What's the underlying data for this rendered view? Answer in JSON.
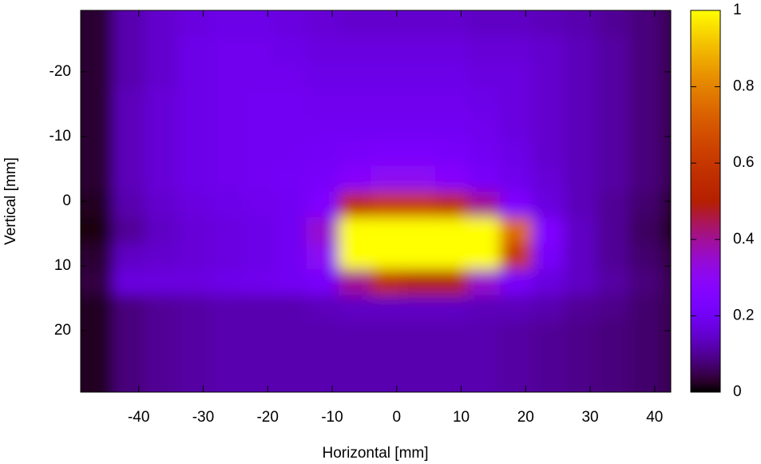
{
  "chart_data": {
    "type": "heatmap",
    "x_label": "Horizontal [mm]",
    "y_label": "Vertical [mm]",
    "colormap": "gnuplot",
    "xlim": [
      -49,
      42.5
    ],
    "ylim": [
      -29.5,
      29.5
    ],
    "y_reversed": true,
    "zlim": [
      0,
      1
    ],
    "xticks": [
      -40,
      -30,
      -20,
      -10,
      0,
      10,
      20,
      30,
      40
    ],
    "yticks": [
      -20,
      -10,
      0,
      10,
      20
    ],
    "zticks": [
      0,
      0.2,
      0.4,
      0.6,
      0.8,
      1
    ],
    "xbins": [
      -49,
      -44,
      -39,
      -34,
      -29,
      -24,
      -19,
      -14,
      -9,
      -4,
      1,
      6,
      11,
      16,
      21,
      26,
      31,
      36,
      41,
      42.5
    ],
    "ybins": [
      -29.5,
      -25.5,
      -21.5,
      -17.5,
      -13.5,
      -9.5,
      -5.5,
      -1.5,
      2.5,
      6.5,
      10.5,
      14.5,
      18.5,
      22.5,
      26.5,
      29.5
    ],
    "z": [
      [
        0.03,
        0.12,
        0.15,
        0.17,
        0.18,
        0.18,
        0.17,
        0.16,
        0.15,
        0.15,
        0.15,
        0.15,
        0.14,
        0.14,
        0.13,
        0.12,
        0.1,
        0.08,
        0.05
      ],
      [
        0.03,
        0.12,
        0.15,
        0.18,
        0.19,
        0.19,
        0.18,
        0.17,
        0.17,
        0.17,
        0.17,
        0.17,
        0.16,
        0.16,
        0.15,
        0.13,
        0.11,
        0.08,
        0.05
      ],
      [
        0.03,
        0.12,
        0.15,
        0.18,
        0.19,
        0.19,
        0.19,
        0.18,
        0.18,
        0.18,
        0.18,
        0.18,
        0.17,
        0.17,
        0.15,
        0.13,
        0.11,
        0.08,
        0.05
      ],
      [
        0.03,
        0.13,
        0.16,
        0.18,
        0.19,
        0.2,
        0.2,
        0.19,
        0.19,
        0.19,
        0.19,
        0.19,
        0.18,
        0.17,
        0.15,
        0.13,
        0.11,
        0.08,
        0.05
      ],
      [
        0.03,
        0.13,
        0.16,
        0.18,
        0.19,
        0.2,
        0.2,
        0.2,
        0.2,
        0.2,
        0.2,
        0.2,
        0.19,
        0.17,
        0.15,
        0.13,
        0.11,
        0.08,
        0.05
      ],
      [
        0.03,
        0.13,
        0.16,
        0.18,
        0.19,
        0.2,
        0.2,
        0.21,
        0.22,
        0.23,
        0.23,
        0.22,
        0.2,
        0.18,
        0.15,
        0.13,
        0.11,
        0.08,
        0.05
      ],
      [
        0.03,
        0.13,
        0.16,
        0.18,
        0.19,
        0.2,
        0.21,
        0.22,
        0.27,
        0.3,
        0.3,
        0.27,
        0.22,
        0.19,
        0.16,
        0.13,
        0.11,
        0.08,
        0.05
      ],
      [
        0.02,
        0.12,
        0.15,
        0.17,
        0.18,
        0.19,
        0.2,
        0.25,
        0.55,
        0.6,
        0.6,
        0.55,
        0.4,
        0.25,
        0.17,
        0.13,
        0.1,
        0.07,
        0.03
      ],
      [
        0.01,
        0.1,
        0.14,
        0.16,
        0.17,
        0.18,
        0.2,
        0.35,
        1,
        1,
        1,
        1,
        1,
        0.75,
        0.25,
        0.14,
        0.1,
        0.06,
        0.02
      ],
      [
        0.03,
        0.14,
        0.15,
        0.16,
        0.17,
        0.18,
        0.2,
        0.3,
        1,
        1,
        1,
        1,
        1,
        0.6,
        0.22,
        0.14,
        0.1,
        0.07,
        0.04
      ],
      [
        0.04,
        0.17,
        0.17,
        0.17,
        0.18,
        0.19,
        0.2,
        0.22,
        0.4,
        0.55,
        0.5,
        0.5,
        0.35,
        0.22,
        0.17,
        0.14,
        0.11,
        0.08,
        0.05
      ],
      [
        0.02,
        0.08,
        0.1,
        0.11,
        0.12,
        0.12,
        0.12,
        0.13,
        0.14,
        0.14,
        0.14,
        0.14,
        0.13,
        0.13,
        0.12,
        0.1,
        0.09,
        0.07,
        0.05
      ],
      [
        0.02,
        0.08,
        0.1,
        0.11,
        0.12,
        0.12,
        0.12,
        0.12,
        0.12,
        0.12,
        0.12,
        0.12,
        0.12,
        0.11,
        0.1,
        0.09,
        0.08,
        0.07,
        0.05
      ],
      [
        0.02,
        0.08,
        0.1,
        0.11,
        0.12,
        0.12,
        0.12,
        0.12,
        0.12,
        0.12,
        0.12,
        0.12,
        0.12,
        0.11,
        0.1,
        0.09,
        0.08,
        0.07,
        0.05
      ],
      [
        0.02,
        0.08,
        0.1,
        0.11,
        0.12,
        0.12,
        0.12,
        0.12,
        0.12,
        0.12,
        0.12,
        0.12,
        0.12,
        0.11,
        0.1,
        0.09,
        0.08,
        0.07,
        0.05
      ]
    ]
  }
}
